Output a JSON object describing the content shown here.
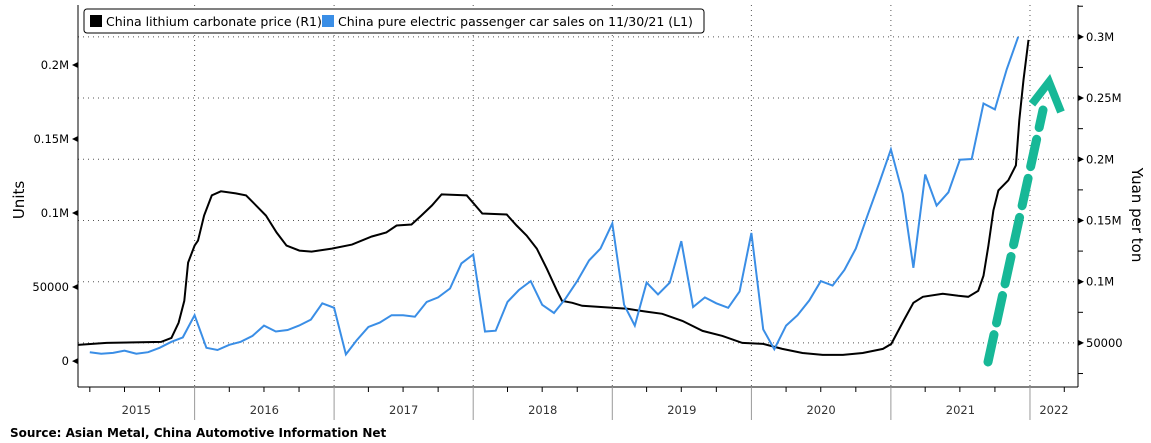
{
  "chart_data": {
    "type": "line",
    "xlim": [
      "2015-03-01",
      "2022-05-07"
    ],
    "x_tick_labels": [
      "2015",
      "2016",
      "2017",
      "2018",
      "2019",
      "2020",
      "2021",
      "2022"
    ],
    "ylabel_left": "Units",
    "ylabel_right": "Yuan per ton",
    "ylim_left": [
      -17500,
      240500
    ],
    "ylim_right": [
      14000,
      326000
    ],
    "left_ticks": [
      {
        "v": 0,
        "label": "0"
      },
      {
        "v": 50000,
        "label": "50000"
      },
      {
        "v": 100000,
        "label": "0.1M"
      },
      {
        "v": 150000,
        "label": "0.15M"
      },
      {
        "v": 200000,
        "label": "0.2M"
      }
    ],
    "right_ticks": [
      {
        "v": 50000,
        "label": "50000"
      },
      {
        "v": 100000,
        "label": "0.1M"
      },
      {
        "v": 150000,
        "label": "0.15M"
      },
      {
        "v": 200000,
        "label": "0.2M"
      },
      {
        "v": 250000,
        "label": "0.25M"
      },
      {
        "v": 300000,
        "label": "0.3M"
      }
    ],
    "grid": true,
    "legend_placement": "top-left",
    "series": [
      {
        "name": "China lithium carbonate price (R1)",
        "axis": "right",
        "color": "#000000",
        "points": [
          [
            "2015-03-01",
            48400
          ],
          [
            "2015-05-15",
            50000
          ],
          [
            "2015-10-05",
            50800
          ],
          [
            "2015-11-01",
            54100
          ],
          [
            "2015-11-20",
            66400
          ],
          [
            "2015-12-05",
            84400
          ],
          [
            "2015-12-15",
            115600
          ],
          [
            "2016-01-01",
            129500
          ],
          [
            "2016-01-10",
            133600
          ],
          [
            "2016-01-26",
            154100
          ],
          [
            "2016-02-15",
            170500
          ],
          [
            "2016-03-10",
            173800
          ],
          [
            "2016-04-18",
            172100
          ],
          [
            "2016-05-15",
            170500
          ],
          [
            "2016-06-10",
            162300
          ],
          [
            "2016-07-06",
            154100
          ],
          [
            "2016-08-03",
            140200
          ],
          [
            "2016-08-29",
            129500
          ],
          [
            "2016-10-02",
            125400
          ],
          [
            "2016-11-03",
            124600
          ],
          [
            "2016-12-26",
            127000
          ],
          [
            "2017-02-17",
            130300
          ],
          [
            "2017-04-10",
            136900
          ],
          [
            "2017-05-18",
            140200
          ],
          [
            "2017-06-14",
            145900
          ],
          [
            "2017-07-23",
            146700
          ],
          [
            "2017-08-18",
            154100
          ],
          [
            "2017-09-15",
            162300
          ],
          [
            "2017-10-10",
            171300
          ],
          [
            "2017-12-15",
            170500
          ],
          [
            "2018-01-25",
            155700
          ],
          [
            "2018-03-30",
            154900
          ],
          [
            "2018-04-25",
            145900
          ],
          [
            "2018-05-21",
            137700
          ],
          [
            "2018-06-17",
            127000
          ],
          [
            "2018-07-13",
            110600
          ],
          [
            "2018-08-09",
            92600
          ],
          [
            "2018-08-22",
            84400
          ],
          [
            "2018-09-18",
            82800
          ],
          [
            "2018-10-14",
            80300
          ],
          [
            "2019-01-01",
            78700
          ],
          [
            "2019-02-10",
            77900
          ],
          [
            "2019-04-02",
            75400
          ],
          [
            "2019-05-12",
            73800
          ],
          [
            "2019-07-04",
            68000
          ],
          [
            "2019-08-26",
            59800
          ],
          [
            "2019-10-17",
            55700
          ],
          [
            "2019-12-08",
            50000
          ],
          [
            "2020-02-01",
            49200
          ],
          [
            "2020-03-22",
            45100
          ],
          [
            "2020-05-14",
            41800
          ],
          [
            "2020-07-06",
            40200
          ],
          [
            "2020-08-28",
            40200
          ],
          [
            "2020-10-19",
            41800
          ],
          [
            "2020-12-11",
            45100
          ],
          [
            "2021-01-02",
            49200
          ],
          [
            "2021-02-03",
            68000
          ],
          [
            "2021-03-01",
            82800
          ],
          [
            "2021-03-26",
            87700
          ],
          [
            "2021-05-17",
            90200
          ],
          [
            "2021-06-27",
            88500
          ],
          [
            "2021-07-23",
            87700
          ],
          [
            "2021-08-18",
            92600
          ],
          [
            "2021-09-01",
            104900
          ],
          [
            "2021-09-14",
            129500
          ],
          [
            "2021-09-27",
            158200
          ],
          [
            "2021-10-10",
            174600
          ],
          [
            "2021-11-05",
            182800
          ],
          [
            "2021-11-25",
            195100
          ],
          [
            "2021-12-04",
            232000
          ],
          [
            "2021-12-15",
            264800
          ],
          [
            "2021-12-28",
            297500
          ]
        ]
      },
      {
        "name": "China pure electric passenger car sales on 11/30/21 (L1)",
        "axis": "left",
        "color": "#3a8ee6",
        "start_month": "2015-03",
        "monthly_values": [
          6000,
          5000,
          5500,
          7000,
          5000,
          6000,
          9000,
          13000,
          16000,
          31000,
          9000,
          7500,
          11000,
          13000,
          17000,
          24000,
          20000,
          21000,
          24000,
          28000,
          39000,
          36000,
          4500,
          14000,
          23000,
          26000,
          31000,
          31000,
          30000,
          40000,
          43000,
          49000,
          66000,
          72000,
          20000,
          20500,
          40000,
          48000,
          54000,
          38000,
          32500,
          42500,
          54000,
          68000,
          76000,
          93000,
          38000,
          24000,
          53000,
          45000,
          53000,
          81000,
          36500,
          43000,
          39000,
          36000,
          47000,
          86500,
          21500,
          8000,
          24000,
          31000,
          41000,
          54000,
          51000,
          61500,
          76000,
          98500,
          120000,
          143000,
          113000,
          63000,
          126000,
          105000,
          114000,
          136000,
          136500,
          174000,
          170000,
          197000,
          219000
        ]
      }
    ],
    "annotation": {
      "type": "dashed-arrow",
      "color": "#17b897"
    },
    "source": "Source: Asian Metal, China Automotive Information Net"
  }
}
